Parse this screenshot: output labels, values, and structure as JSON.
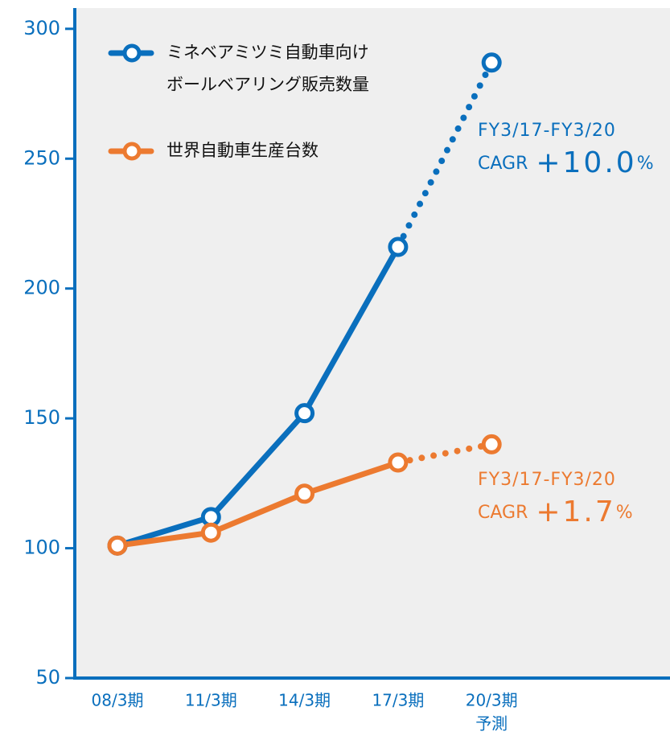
{
  "chart_data": {
    "type": "line",
    "categories": [
      "08/3期",
      "11/3期",
      "14/3期",
      "17/3期",
      "20/3期"
    ],
    "x_note": "予測",
    "series": [
      {
        "name": "ミネベアミツミ自動車向けボールベアリング販売数量",
        "color": "#0a6fbd",
        "values": [
          101,
          112,
          152,
          216,
          287
        ]
      },
      {
        "name": "世界自動車生産台数",
        "color": "#ec7a30",
        "values": [
          101,
          106,
          121,
          133,
          140
        ]
      }
    ],
    "dotted_from_index": 3,
    "ylim": [
      50,
      308
    ],
    "yticks": [
      50,
      100,
      150,
      200,
      250,
      300
    ],
    "annotations": [
      {
        "period": "FY3/17-FY3/20",
        "prefix": "CAGR",
        "value": "+10.0",
        "unit": "%",
        "color": "#0a6fbd"
      },
      {
        "period": "FY3/17-FY3/20",
        "prefix": "CAGR",
        "value": "+1.7",
        "unit": "%",
        "color": "#ec7a30"
      }
    ]
  }
}
